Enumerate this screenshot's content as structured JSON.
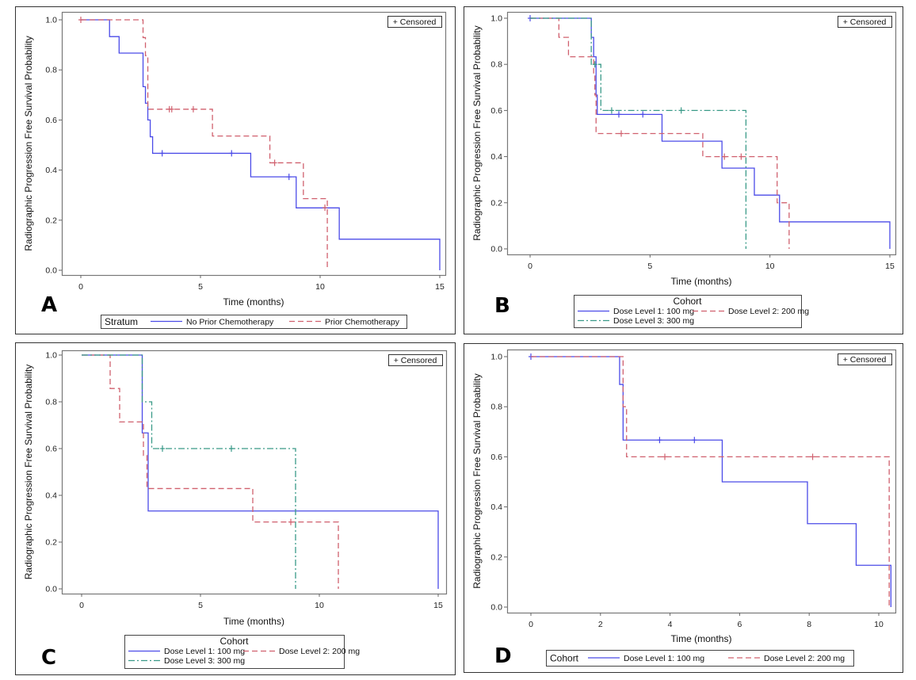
{
  "chart_data": [
    {
      "panel": "A",
      "type": "line",
      "subtype": "kaplan-meier step",
      "title": "",
      "xlabel": "Time (months)",
      "ylabel": "Radiographic Progression Free Survival Probability",
      "xlim": [
        0,
        15
      ],
      "ylim": [
        0,
        1.0
      ],
      "xticks": [
        "0",
        "5",
        "10",
        "15"
      ],
      "xtick_values": [
        0,
        5,
        10,
        15
      ],
      "yticks": [
        "0.0",
        "0.2",
        "0.4",
        "0.6",
        "0.8",
        "1.0"
      ],
      "ytick_values": [
        0,
        0.2,
        0.4,
        0.6,
        0.8,
        1.0
      ],
      "grid": false,
      "censored_label": "+ Censored",
      "legend": {
        "title": "Stratum",
        "layout": "inline",
        "placement": "bottom"
      },
      "series": [
        {
          "name": "No Prior Chemotherapy",
          "color": "#4b4be8",
          "style": "solid",
          "steps": [
            [
              0,
              1.0
            ],
            [
              1.2,
              0.933
            ],
            [
              1.6,
              0.867
            ],
            [
              2.6,
              0.733
            ],
            [
              2.7,
              0.667
            ],
            [
              2.8,
              0.6
            ],
            [
              2.9,
              0.533
            ],
            [
              3.0,
              0.467
            ],
            [
              7.1,
              0.373
            ],
            [
              9.0,
              0.249
            ],
            [
              10.8,
              0.124
            ],
            [
              15.0,
              0.0
            ]
          ],
          "censored": [
            [
              3.4,
              0.467
            ],
            [
              6.3,
              0.467
            ],
            [
              8.7,
              0.373
            ]
          ]
        },
        {
          "name": "Prior Chemotherapy",
          "color": "#d0606e",
          "style": "dashed",
          "steps": [
            [
              0,
              1.0
            ],
            [
              2.6,
              0.929
            ],
            [
              2.7,
              0.857
            ],
            [
              2.8,
              0.643
            ],
            [
              5.5,
              0.536
            ],
            [
              7.9,
              0.429
            ],
            [
              9.3,
              0.286
            ],
            [
              10.3,
              0.0
            ]
          ],
          "censored": [
            [
              0,
              1.0
            ],
            [
              3.7,
              0.643
            ],
            [
              3.8,
              0.643
            ],
            [
              4.7,
              0.643
            ],
            [
              8.1,
              0.429
            ],
            [
              10.2,
              0.25
            ]
          ]
        }
      ]
    },
    {
      "panel": "B",
      "type": "line",
      "subtype": "kaplan-meier step",
      "title": "",
      "xlabel": "Time (months)",
      "ylabel": "Radiographic Progression Free Survival Probability",
      "xlim": [
        0,
        15
      ],
      "ylim": [
        0,
        1.0
      ],
      "xticks": [
        "0",
        "5",
        "10",
        "15"
      ],
      "xtick_values": [
        0,
        5,
        10,
        15
      ],
      "yticks": [
        "0.0",
        "0.2",
        "0.4",
        "0.6",
        "0.8",
        "1.0"
      ],
      "ytick_values": [
        0,
        0.2,
        0.4,
        0.6,
        0.8,
        1.0
      ],
      "grid": false,
      "censored_label": "+ Censored",
      "legend": {
        "title": "Cohort",
        "layout": "stacked",
        "placement": "bottom"
      },
      "series": [
        {
          "name": "Dose Level 1: 100 mg",
          "color": "#4b4be8",
          "style": "solid",
          "steps": [
            [
              0,
              1.0
            ],
            [
              2.55,
              0.917
            ],
            [
              2.65,
              0.833
            ],
            [
              2.75,
              0.667
            ],
            [
              2.8,
              0.583
            ],
            [
              5.5,
              0.467
            ],
            [
              8.0,
              0.35
            ],
            [
              9.35,
              0.233
            ],
            [
              10.4,
              0.117
            ],
            [
              15.0,
              0.0
            ]
          ],
          "censored": [
            [
              0,
              1.0
            ],
            [
              3.7,
              0.583
            ],
            [
              4.7,
              0.583
            ]
          ]
        },
        {
          "name": "Dose Level 2: 200 mg",
          "color": "#d0606e",
          "style": "dashed",
          "steps": [
            [
              0,
              1.0
            ],
            [
              1.2,
              0.917
            ],
            [
              1.6,
              0.833
            ],
            [
              2.65,
              0.75
            ],
            [
              2.7,
              0.667
            ],
            [
              2.75,
              0.5
            ],
            [
              7.2,
              0.4
            ],
            [
              10.3,
              0.2
            ],
            [
              10.8,
              0.0
            ]
          ],
          "censored": [
            [
              3.8,
              0.5
            ],
            [
              8.1,
              0.4
            ],
            [
              8.8,
              0.4
            ]
          ]
        },
        {
          "name": "Dose Level 3: 300 mg",
          "color": "#3a9a88",
          "style": "dash-dot",
          "steps": [
            [
              0,
              1.0
            ],
            [
              2.55,
              0.8
            ],
            [
              2.95,
              0.6
            ],
            [
              9.0,
              0.0
            ]
          ],
          "censored": [
            [
              2.7,
              0.8
            ],
            [
              3.4,
              0.6
            ],
            [
              6.3,
              0.6
            ]
          ]
        }
      ]
    },
    {
      "panel": "C",
      "type": "line",
      "subtype": "kaplan-meier step",
      "title": "",
      "xlabel": "Time (months)",
      "ylabel": "Radiographic Progression Free Survival Probability",
      "xlim": [
        0,
        15
      ],
      "ylim": [
        0,
        1.0
      ],
      "xticks": [
        "0",
        "5",
        "10",
        "15"
      ],
      "xtick_values": [
        0,
        5,
        10,
        15
      ],
      "yticks": [
        "0.0",
        "0.2",
        "0.4",
        "0.6",
        "0.8",
        "1.0"
      ],
      "ytick_values": [
        0,
        0.2,
        0.4,
        0.6,
        0.8,
        1.0
      ],
      "grid": false,
      "censored_label": "+ Censored",
      "legend": {
        "title": "Cohort",
        "layout": "stacked",
        "placement": "bottom"
      },
      "series": [
        {
          "name": "Dose Level 1: 100 mg",
          "color": "#4b4be8",
          "style": "solid",
          "steps": [
            [
              0,
              1.0
            ],
            [
              2.55,
              0.667
            ],
            [
              2.8,
              0.333
            ],
            [
              15.0,
              0.0
            ]
          ],
          "censored": []
        },
        {
          "name": "Dose Level 2: 200 mg",
          "color": "#d0606e",
          "style": "dashed",
          "steps": [
            [
              0,
              1.0
            ],
            [
              1.2,
              0.857
            ],
            [
              1.6,
              0.714
            ],
            [
              2.6,
              0.571
            ],
            [
              2.75,
              0.429
            ],
            [
              7.2,
              0.286
            ],
            [
              10.8,
              0.0
            ]
          ],
          "censored": [
            [
              8.8,
              0.286
            ]
          ]
        },
        {
          "name": "Dose Level 3: 300 mg",
          "color": "#3a9a88",
          "style": "dash-dot",
          "steps": [
            [
              0,
              1.0
            ],
            [
              2.55,
              0.8
            ],
            [
              2.95,
              0.6
            ],
            [
              9.0,
              0.0
            ]
          ],
          "censored": [
            [
              3.4,
              0.6
            ],
            [
              6.3,
              0.6
            ]
          ]
        }
      ]
    },
    {
      "panel": "D",
      "type": "line",
      "subtype": "kaplan-meier step",
      "title": "",
      "xlabel": "Time (months)",
      "ylabel": "Radiographic Progression Free Survival Probability",
      "xlim": [
        0,
        10.4
      ],
      "ylim": [
        0,
        1.0
      ],
      "xticks": [
        "0",
        "2",
        "4",
        "6",
        "8",
        "10"
      ],
      "xtick_values": [
        0,
        2,
        4,
        6,
        8,
        10
      ],
      "yticks": [
        "0.0",
        "0.2",
        "0.4",
        "0.6",
        "0.8",
        "1.0"
      ],
      "ytick_values": [
        0,
        0.2,
        0.4,
        0.6,
        0.8,
        1.0
      ],
      "grid": false,
      "censored_label": "+ Censored",
      "legend": {
        "title": "Cohort",
        "layout": "inline",
        "placement": "bottom"
      },
      "series": [
        {
          "name": "Dose Level 1: 100 mg",
          "color": "#4b4be8",
          "style": "solid",
          "steps": [
            [
              0,
              1.0
            ],
            [
              2.55,
              0.889
            ],
            [
              2.65,
              0.667
            ],
            [
              5.5,
              0.5
            ],
            [
              7.95,
              0.333
            ],
            [
              9.35,
              0.167
            ],
            [
              10.35,
              0.0
            ]
          ],
          "censored": [
            [
              0,
              1.0
            ],
            [
              3.7,
              0.667
            ],
            [
              4.7,
              0.667
            ]
          ]
        },
        {
          "name": "Dose Level 2: 200 mg",
          "color": "#d0606e",
          "style": "dashed",
          "steps": [
            [
              0,
              1.0
            ],
            [
              2.65,
              0.8
            ],
            [
              2.75,
              0.6
            ],
            [
              10.3,
              0.0
            ]
          ],
          "censored": [
            [
              3.85,
              0.6
            ],
            [
              8.1,
              0.6
            ]
          ]
        }
      ]
    }
  ]
}
